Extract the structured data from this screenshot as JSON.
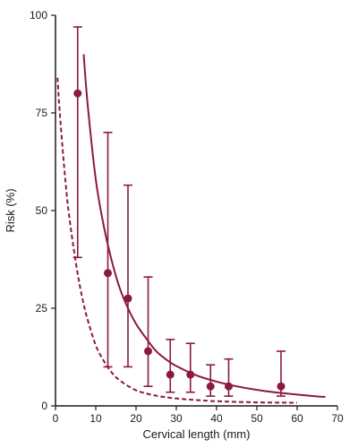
{
  "chart_data": {
    "type": "scatter",
    "title": "",
    "xlabel": "Cervical length (mm)",
    "ylabel": "Risk (%)",
    "xlim": [
      0,
      70
    ],
    "ylim": [
      0,
      100
    ],
    "x_ticks": [
      0,
      10,
      20,
      30,
      40,
      50,
      60,
      70
    ],
    "y_ticks": [
      0,
      25,
      50,
      75,
      100
    ],
    "x_tick_labels": [
      "0",
      "10",
      "20",
      "30",
      "40",
      "50",
      "60",
      "70"
    ],
    "y_tick_labels": [
      "0",
      "25",
      "50",
      "75",
      "100"
    ],
    "grid": false,
    "legend": "none",
    "color": "#8b1a3c",
    "points": [
      {
        "x": 5.5,
        "y": 80,
        "lower": 38,
        "upper": 97
      },
      {
        "x": 13,
        "y": 34,
        "lower": 10,
        "upper": 70
      },
      {
        "x": 18,
        "y": 27.5,
        "lower": 10,
        "upper": 56.5
      },
      {
        "x": 23,
        "y": 14,
        "lower": 5,
        "upper": 33
      },
      {
        "x": 28.5,
        "y": 8,
        "lower": 3.5,
        "upper": 17
      },
      {
        "x": 33.5,
        "y": 8,
        "lower": 3.5,
        "upper": 16
      },
      {
        "x": 38.5,
        "y": 5,
        "lower": 2.5,
        "upper": 10.5
      },
      {
        "x": 43,
        "y": 5,
        "lower": 2.5,
        "upper": 12
      },
      {
        "x": 56,
        "y": 5,
        "lower": 2.5,
        "upper": 14
      }
    ],
    "series": [
      {
        "style": "solid",
        "x": [
          7,
          8,
          10,
          12,
          14,
          16,
          18,
          20,
          22,
          25,
          28,
          30,
          35,
          40,
          45,
          50,
          55,
          60,
          65,
          67
        ],
        "y": [
          90,
          77,
          58,
          46,
          37,
          30,
          25,
          21,
          18,
          14,
          11.5,
          10.2,
          7.8,
          6.2,
          5,
          4.1,
          3.4,
          2.9,
          2.4,
          2.3
        ]
      },
      {
        "style": "dashed",
        "x": [
          0.5,
          1,
          2,
          3,
          4,
          5,
          6,
          7,
          8,
          10,
          12,
          14,
          16,
          20,
          25,
          30,
          35,
          40,
          50,
          60
        ],
        "y": [
          84,
          76,
          63,
          52,
          44,
          37,
          31,
          26,
          22,
          15.5,
          11.5,
          8.5,
          6.5,
          4,
          2.6,
          1.9,
          1.5,
          1.2,
          0.9,
          0.8
        ]
      }
    ]
  }
}
